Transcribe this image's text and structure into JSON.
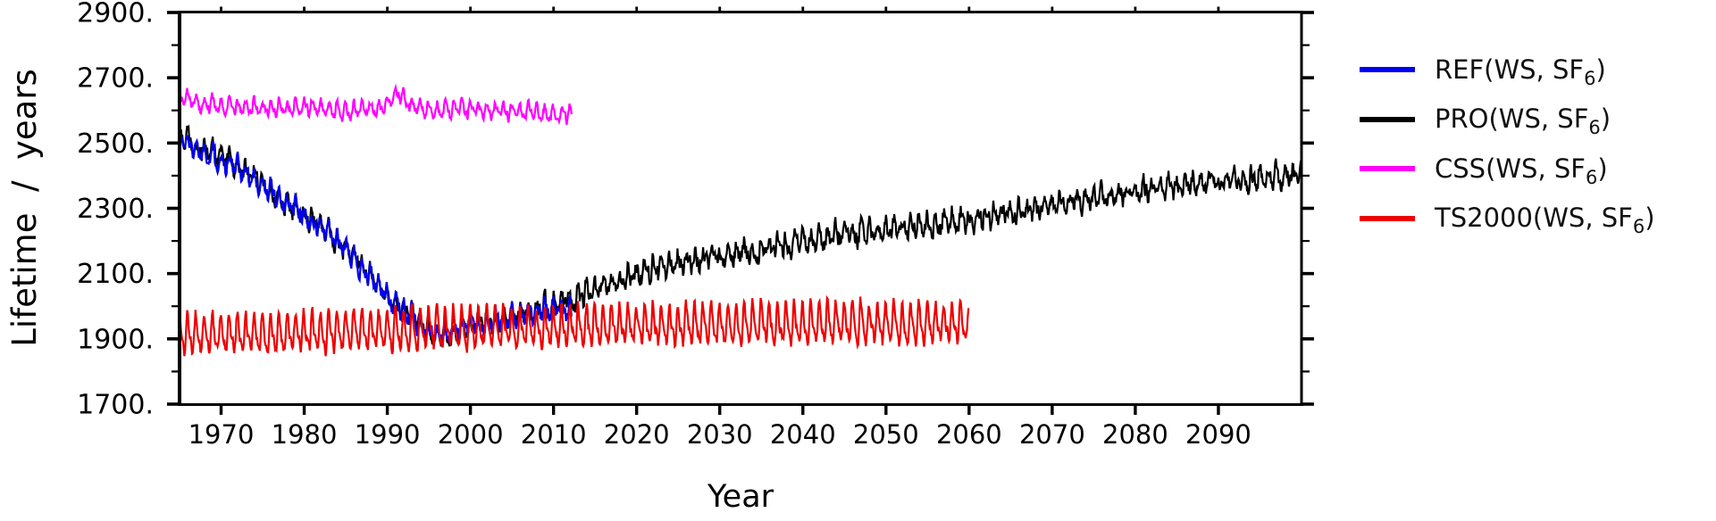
{
  "page": {
    "background": "#ffffff"
  },
  "chart_data": {
    "type": "line",
    "title": "",
    "xlabel": "Year",
    "ylabel": "Lifetime  /  years",
    "xlim": [
      1965,
      2100
    ],
    "ylim": [
      1700,
      2900
    ],
    "grid": false,
    "legend_position": "right-outside",
    "x_ticks": [
      1970,
      1980,
      1990,
      2000,
      2010,
      2020,
      2030,
      2040,
      2050,
      2060,
      2070,
      2080,
      2090
    ],
    "x_tick_labels": [
      "1970",
      "1980",
      "1990",
      "2000",
      "2010",
      "2020",
      "2030",
      "2040",
      "2050",
      "2060",
      "2070",
      "2080",
      "2090"
    ],
    "y_major_ticks": [
      2900,
      2700,
      2500,
      2300,
      2100,
      1900,
      1700
    ],
    "y_major_labels": [
      "2900.",
      "2700.",
      "2500.",
      "2300.",
      "2100.",
      "1900.",
      "1700."
    ],
    "y_minor_ticks": [
      2800,
      2600,
      2400,
      2200,
      2000,
      1800
    ],
    "axis_color": "#000000",
    "series": [
      {
        "name": "REF(WS, SF6)",
        "legend": {
          "main": "REF(WS, SF",
          "sub": "6",
          "close": ")"
        },
        "color": "#0000ee",
        "z": 2,
        "x_start": 1965.0,
        "x_end": 2012.2,
        "points_per_year": 12,
        "seasonal_amplitude": 20,
        "seasonal_harmonic": 0.35,
        "noise_amplitude": 30,
        "noise_persistence": 0.35,
        "seed": 1337,
        "trend": [
          [
            1965,
            2515
          ],
          [
            1967,
            2486
          ],
          [
            1969,
            2462
          ],
          [
            1971,
            2436
          ],
          [
            1973,
            2408
          ],
          [
            1975,
            2368
          ],
          [
            1977,
            2335
          ],
          [
            1979,
            2300
          ],
          [
            1981,
            2256
          ],
          [
            1983,
            2220
          ],
          [
            1985,
            2172
          ],
          [
            1987,
            2118
          ],
          [
            1989,
            2060
          ],
          [
            1991,
            2008
          ],
          [
            1993,
            1972
          ],
          [
            1994,
            1945
          ],
          [
            1995,
            1928
          ],
          [
            1996,
            1916
          ],
          [
            1997,
            1912
          ],
          [
            1998,
            1922
          ],
          [
            1999,
            1934
          ],
          [
            2000,
            1942
          ],
          [
            2002,
            1952
          ],
          [
            2004,
            1960
          ],
          [
            2006,
            1972
          ],
          [
            2008,
            1982
          ],
          [
            2010,
            1990
          ],
          [
            2012.2,
            1985
          ]
        ]
      },
      {
        "name": "PRO(WS, SF6)",
        "legend": {
          "main": "PRO(WS, SF",
          "sub": "6",
          "close": ")"
        },
        "color": "#000000",
        "z": 1,
        "x_start": 1965.0,
        "x_end": 2100.0,
        "points_per_year": 12,
        "seasonal_amplitude": 22,
        "seasonal_harmonic": 0.4,
        "noise_amplitude": 32,
        "noise_persistence": 0.35,
        "seed": 4242,
        "trend": [
          [
            1965,
            2525
          ],
          [
            1967,
            2490
          ],
          [
            1969,
            2468
          ],
          [
            1971,
            2440
          ],
          [
            1973,
            2412
          ],
          [
            1975,
            2372
          ],
          [
            1977,
            2338
          ],
          [
            1979,
            2302
          ],
          [
            1981,
            2260
          ],
          [
            1983,
            2225
          ],
          [
            1985,
            2176
          ],
          [
            1987,
            2122
          ],
          [
            1989,
            2064
          ],
          [
            1991,
            2012
          ],
          [
            1993,
            1975
          ],
          [
            1994,
            1948
          ],
          [
            1995,
            1925
          ],
          [
            1996,
            1910
          ],
          [
            1997,
            1908
          ],
          [
            1998,
            1918
          ],
          [
            1999,
            1930
          ],
          [
            2000,
            1940
          ],
          [
            2002,
            1950
          ],
          [
            2004,
            1958
          ],
          [
            2006,
            1972
          ],
          [
            2008,
            1992
          ],
          [
            2010,
            2005
          ],
          [
            2014,
            2040
          ],
          [
            2018,
            2080
          ],
          [
            2022,
            2115
          ],
          [
            2026,
            2138
          ],
          [
            2030,
            2152
          ],
          [
            2033,
            2165
          ],
          [
            2036,
            2176
          ],
          [
            2040,
            2195
          ],
          [
            2044,
            2212
          ],
          [
            2048,
            2228
          ],
          [
            2052,
            2240
          ],
          [
            2056,
            2252
          ],
          [
            2060,
            2266
          ],
          [
            2064,
            2282
          ],
          [
            2068,
            2300
          ],
          [
            2072,
            2318
          ],
          [
            2076,
            2336
          ],
          [
            2080,
            2352
          ],
          [
            2084,
            2366
          ],
          [
            2088,
            2378
          ],
          [
            2092,
            2388
          ],
          [
            2096,
            2396
          ],
          [
            2100,
            2404
          ]
        ]
      },
      {
        "name": "CSS(WS, SF6)",
        "legend": {
          "main": "CSS(WS, SF",
          "sub": "6",
          "close": ")"
        },
        "color": "#ff00ff",
        "z": 3,
        "x_start": 1965.0,
        "x_end": 2012.2,
        "points_per_year": 12,
        "seasonal_amplitude": 20,
        "seasonal_harmonic": 0.3,
        "noise_amplitude": 17,
        "noise_persistence": 0.35,
        "seed": 777,
        "trend": [
          [
            1965,
            2648
          ],
          [
            1966,
            2632
          ],
          [
            1968,
            2618
          ],
          [
            1970,
            2612
          ],
          [
            1973,
            2608
          ],
          [
            1976,
            2610
          ],
          [
            1979,
            2612
          ],
          [
            1982,
            2605
          ],
          [
            1985,
            2598
          ],
          [
            1988,
            2605
          ],
          [
            1990,
            2618
          ],
          [
            1991.3,
            2658
          ],
          [
            1992.5,
            2622
          ],
          [
            1994,
            2605
          ],
          [
            1996,
            2600
          ],
          [
            1998,
            2602
          ],
          [
            2000,
            2600
          ],
          [
            2003,
            2596
          ],
          [
            2006,
            2594
          ],
          [
            2009,
            2590
          ],
          [
            2012.2,
            2588
          ]
        ]
      },
      {
        "name": "TS2000(WS, SF6)",
        "legend": {
          "main": "TS2000(WS, SF",
          "sub": "6",
          "close": ")"
        },
        "color": "#ee0000",
        "z": 4,
        "x_start": 1965.0,
        "x_end": 2060.0,
        "points_per_year": 12,
        "seasonal_amplitude": 52,
        "seasonal_harmonic": 0.38,
        "noise_amplitude": 20,
        "noise_persistence": 0.3,
        "seed": 2024,
        "trend": [
          [
            1965,
            1912
          ],
          [
            1970,
            1914
          ],
          [
            1975,
            1916
          ],
          [
            1980,
            1918
          ],
          [
            1985,
            1922
          ],
          [
            1990,
            1925
          ],
          [
            1995,
            1928
          ],
          [
            2000,
            1930
          ],
          [
            2005,
            1933
          ],
          [
            2010,
            1936
          ],
          [
            2015,
            1938
          ],
          [
            2020,
            1940
          ],
          [
            2025,
            1942
          ],
          [
            2030,
            1944
          ],
          [
            2035,
            1945
          ],
          [
            2040,
            1946
          ],
          [
            2050,
            1946
          ],
          [
            2060,
            1946
          ]
        ]
      }
    ]
  }
}
